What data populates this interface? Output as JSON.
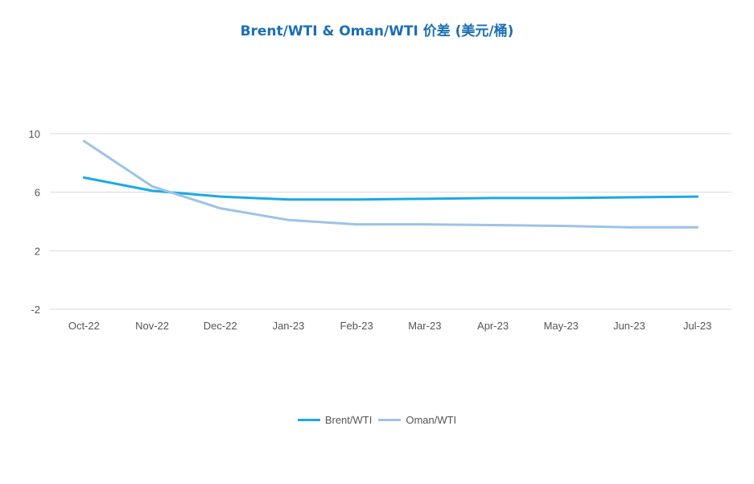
{
  "colors": {
    "title": "#1a6fb5",
    "brent_series": "#1aa9e6",
    "oman_series": "#9dc3e6",
    "gridline": "#d9d9d9",
    "tick_text": "#555555"
  },
  "chart_data": {
    "type": "line",
    "title": "Brent/WTI & Oman/WTI 价差 (美元/桶)",
    "xlabel": "",
    "ylabel": "",
    "categories": [
      "Oct-22",
      "Nov-22",
      "Dec-22",
      "Jan-23",
      "Feb-23",
      "Mar-23",
      "Apr-23",
      "May-23",
      "Jun-23",
      "Jul-23"
    ],
    "yticks": [
      -2,
      2,
      6,
      10
    ],
    "ylim": [
      -2,
      10
    ],
    "grid": true,
    "legend_position": "bottom",
    "series": [
      {
        "name": "Brent/WTI",
        "values": [
          7.0,
          6.1,
          5.7,
          5.5,
          5.5,
          5.55,
          5.6,
          5.6,
          5.65,
          5.7
        ]
      },
      {
        "name": "Oman/WTI",
        "values": [
          9.5,
          6.4,
          4.9,
          4.1,
          3.8,
          3.8,
          3.75,
          3.7,
          3.6,
          3.6
        ]
      }
    ]
  }
}
